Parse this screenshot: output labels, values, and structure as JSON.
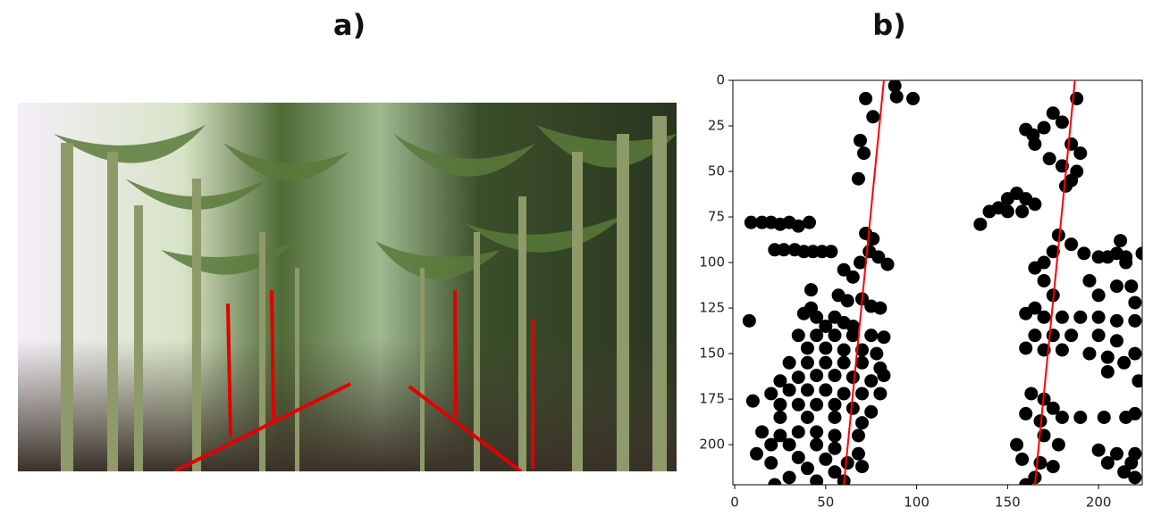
{
  "panel_labels": [
    "a)",
    "b)"
  ],
  "chart_data": {
    "type": "scatter",
    "xlim": [
      -1,
      224
    ],
    "ylim": [
      222,
      0
    ],
    "xticks": [
      0,
      50,
      100,
      150,
      200
    ],
    "yticks": [
      0,
      25,
      50,
      75,
      100,
      125,
      150,
      175,
      200
    ],
    "series": [
      {
        "type": "scatter",
        "color": "#000000",
        "x": [
          72,
          76,
          88,
          89,
          98,
          69,
          71,
          68,
          9,
          15,
          20,
          25,
          30,
          35,
          41,
          8,
          27,
          33,
          38,
          43,
          48,
          53,
          22,
          72,
          76,
          74,
          69,
          79,
          84,
          60,
          65,
          57,
          62,
          70,
          75,
          80,
          42,
          42,
          38,
          45,
          55,
          60,
          65,
          50,
          35,
          45,
          55,
          65,
          75,
          82,
          40,
          50,
          60,
          70,
          78,
          30,
          40,
          50,
          60,
          70,
          80,
          82,
          25,
          35,
          45,
          55,
          65,
          75,
          20,
          30,
          40,
          50,
          60,
          70,
          80,
          10,
          25,
          35,
          45,
          55,
          65,
          75,
          25,
          40,
          55,
          70,
          15,
          25,
          35,
          45,
          55,
          68,
          20,
          30,
          45,
          55,
          68,
          12,
          35,
          50,
          62,
          20,
          40,
          55,
          30,
          45,
          60,
          22,
          70,
          188,
          175,
          170,
          180,
          160,
          164,
          165,
          185,
          190,
          173,
          180,
          188,
          185,
          182,
          155,
          160,
          165,
          150,
          145,
          140,
          150,
          158,
          135,
          178,
          185,
          175,
          192,
          170,
          165,
          210,
          215,
          200,
          205,
          224,
          212,
          215,
          195,
          200,
          210,
          218,
          220,
          170,
          175,
          165,
          160,
          170,
          180,
          190,
          200,
          210,
          220,
          165,
          175,
          185,
          200,
          210,
          160,
          170,
          180,
          195,
          205,
          220,
          214,
          205,
          222,
          163,
          170,
          175,
          160,
          168,
          180,
          190,
          203,
          215,
          220,
          155,
          170,
          178,
          200,
          210,
          220,
          158,
          168,
          175,
          205,
          218,
          165,
          160,
          214,
          220
        ],
        "y": [
          10,
          20,
          3,
          9,
          10,
          33,
          40,
          54,
          78,
          78,
          78,
          79,
          78,
          80,
          78,
          132,
          93,
          93,
          94,
          94,
          94,
          94,
          93,
          84,
          87,
          94,
          100,
          97,
          101,
          104,
          108,
          118,
          121,
          120,
          124,
          125,
          115,
          125,
          128,
          130,
          130,
          133,
          135,
          135,
          140,
          140,
          140,
          140,
          140,
          141,
          147,
          147,
          148,
          148,
          150,
          155,
          155,
          155,
          155,
          155,
          158,
          162,
          165,
          163,
          162,
          162,
          163,
          165,
          172,
          170,
          170,
          170,
          172,
          172,
          172,
          176,
          178,
          178,
          178,
          178,
          180,
          182,
          185,
          185,
          185,
          188,
          193,
          195,
          193,
          193,
          195,
          195,
          200,
          200,
          200,
          202,
          205,
          205,
          207,
          208,
          210,
          210,
          213,
          215,
          218,
          220,
          220,
          222,
          212,
          10,
          18,
          26,
          23,
          27,
          30,
          35,
          35,
          40,
          43,
          47,
          50,
          55,
          58,
          62,
          65,
          68,
          65,
          70,
          72,
          72,
          72,
          79,
          85,
          90,
          94,
          95,
          100,
          103,
          95,
          97,
          97,
          97,
          95,
          88,
          100,
          110,
          118,
          113,
          113,
          122,
          110,
          118,
          125,
          128,
          130,
          130,
          130,
          130,
          132,
          132,
          140,
          140,
          140,
          140,
          143,
          147,
          148,
          148,
          150,
          152,
          150,
          155,
          160,
          165,
          172,
          175,
          180,
          183,
          187,
          185,
          185,
          185,
          185,
          183,
          200,
          195,
          200,
          203,
          205,
          205,
          208,
          210,
          212,
          210,
          210,
          218,
          222,
          215,
          218
        ]
      },
      {
        "type": "line",
        "color": "#ff0000",
        "x": [
          60,
          82
        ],
        "y": [
          222,
          0
        ]
      },
      {
        "type": "line",
        "color": "#ff0000",
        "x": [
          165,
          187
        ],
        "y": [
          222,
          0
        ]
      }
    ]
  }
}
